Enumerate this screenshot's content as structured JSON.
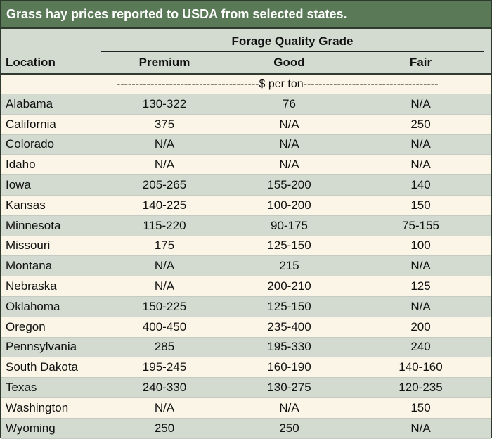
{
  "title": "Grass hay prices reported to USDA from selected states.",
  "header": {
    "group_label": "Forage Quality Grade",
    "location": "Location",
    "premium": "Premium",
    "good": "Good",
    "fair": "Fair",
    "unit_text": "--------------------------------------$ per ton------------------------------------"
  },
  "rows": [
    {
      "location": "Alabama",
      "premium": "130-322",
      "good": "76",
      "fair": "N/A"
    },
    {
      "location": "California",
      "premium": "375",
      "good": "N/A",
      "fair": "250"
    },
    {
      "location": "Colorado",
      "premium": "N/A",
      "good": "N/A",
      "fair": "N/A"
    },
    {
      "location": "Idaho",
      "premium": "N/A",
      "good": "N/A",
      "fair": "N/A"
    },
    {
      "location": "Iowa",
      "premium": "205-265",
      "good": "155-200",
      "fair": "140"
    },
    {
      "location": "Kansas",
      "premium": "140-225",
      "good": "100-200",
      "fair": "150"
    },
    {
      "location": "Minnesota",
      "premium": "115-220",
      "good": "90-175",
      "fair": "75-155"
    },
    {
      "location": "Missouri",
      "premium": "175",
      "good": "125-150",
      "fair": "100"
    },
    {
      "location": "Montana",
      "premium": "N/A",
      "good": "215",
      "fair": "N/A"
    },
    {
      "location": "Nebraska",
      "premium": "N/A",
      "good": "200-210",
      "fair": "125"
    },
    {
      "location": "Oklahoma",
      "premium": "150-225",
      "good": "125-150",
      "fair": "N/A"
    },
    {
      "location": "Oregon",
      "premium": "400-450",
      "good": "235-400",
      "fair": "200"
    },
    {
      "location": "Pennsylvania",
      "premium": "285",
      "good": "195-330",
      "fair": "240"
    },
    {
      "location": "South Dakota",
      "premium": "195-245",
      "good": "160-190",
      "fair": "140-160"
    },
    {
      "location": "Texas",
      "premium": "240-330",
      "good": "130-275",
      "fair": "120-235"
    },
    {
      "location": "Washington",
      "premium": "N/A",
      "good": "N/A",
      "fair": "150"
    },
    {
      "location": "Wyoming",
      "premium": "250",
      "good": "250",
      "fair": "N/A"
    }
  ]
}
